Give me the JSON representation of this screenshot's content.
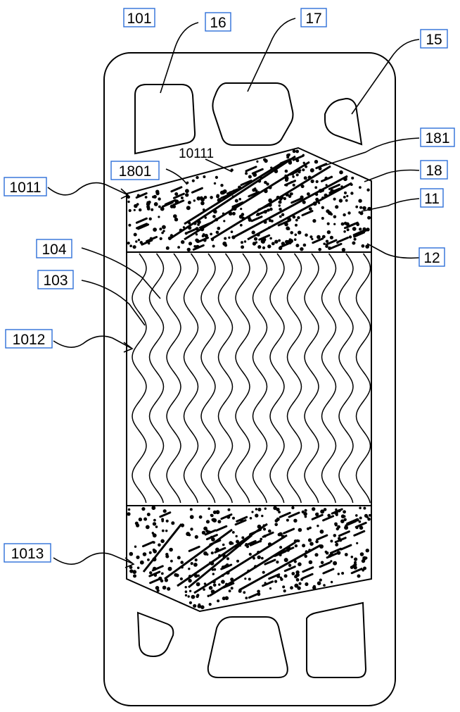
{
  "figure": {
    "labels": {
      "l101": "101",
      "l16": "16",
      "l17": "17",
      "l15": "15",
      "l181": "181",
      "l18": "18",
      "l11": "11",
      "l12": "12",
      "l10111": "10111",
      "l1801": "1801",
      "l1011": "1011",
      "l104": "104",
      "l103": "103",
      "l1012": "1012",
      "l1013": "1013"
    },
    "colors": {
      "line": "#000000",
      "box": "#2e6fd8",
      "background": "#ffffff"
    }
  }
}
